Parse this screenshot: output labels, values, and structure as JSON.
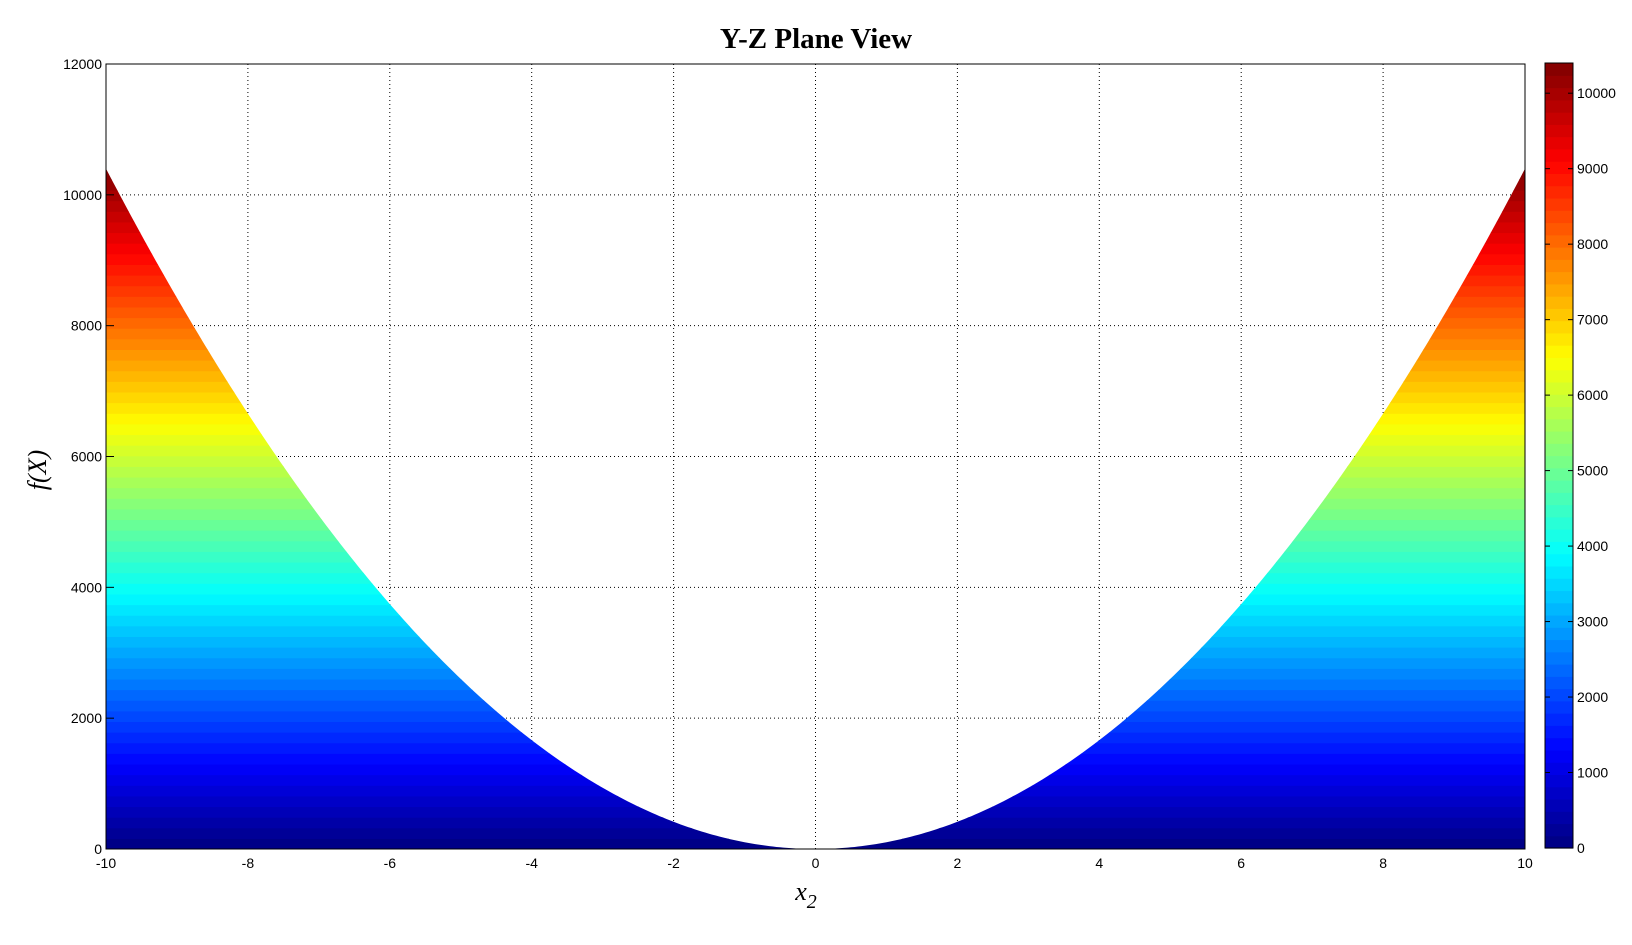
{
  "chart_data": {
    "type": "area",
    "title": "Y-Z Plane View",
    "xlabel": "x",
    "xlabel_subscript": "2",
    "ylabel": "f(X)",
    "xlim": [
      -10,
      10
    ],
    "ylim": [
      0,
      12000
    ],
    "xticks": [
      "-10",
      "-8",
      "-6",
      "-4",
      "-2",
      "0",
      "2",
      "4",
      "6",
      "8",
      "10"
    ],
    "yticks": [
      "0",
      "2000",
      "4000",
      "6000",
      "8000",
      "10000",
      "12000"
    ],
    "grid": true,
    "series": [
      {
        "x": [
          -10,
          -8,
          -6,
          -4,
          -2,
          0,
          2,
          4,
          6,
          8,
          10
        ],
        "y": [
          10400,
          6656,
          3744,
          1664,
          416,
          0,
          416,
          1664,
          3744,
          6656,
          10400
        ],
        "fill": "below curve, colored by f(X)"
      }
    ],
    "colormap": "jet",
    "colorbar": {
      "range": [
        0,
        10400
      ],
      "ticks": [
        "0",
        "1000",
        "2000",
        "3000",
        "4000",
        "5000",
        "6000",
        "7000",
        "8000",
        "9000",
        "10000"
      ],
      "placement": "right"
    }
  }
}
